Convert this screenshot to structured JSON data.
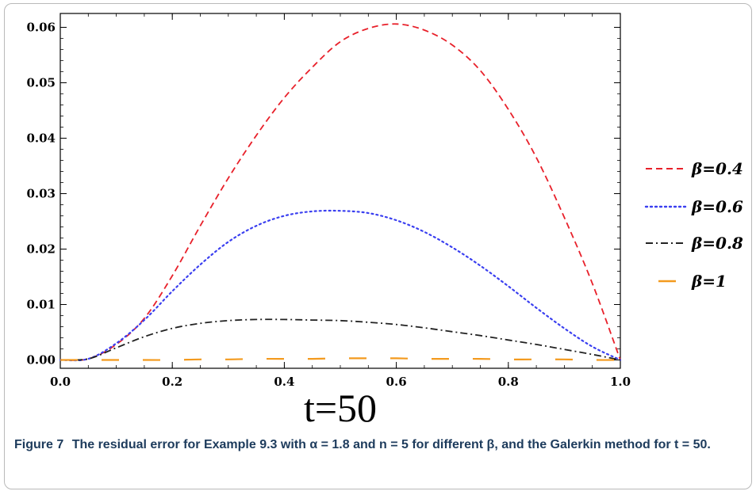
{
  "chart_data": {
    "type": "line",
    "title": "",
    "xlabel": "t=50",
    "ylabel": "",
    "xlim": [
      0.0,
      1.0
    ],
    "ylim": [
      -0.0015,
      0.0625
    ],
    "xticks": [
      0.0,
      0.2,
      0.4,
      0.6,
      0.8,
      1.0
    ],
    "xtick_labels": [
      "0.0",
      "0.2",
      "0.4",
      "0.6",
      "0.8",
      "1.0"
    ],
    "yticks": [
      0.0,
      0.01,
      0.02,
      0.03,
      0.04,
      0.05,
      0.06
    ],
    "ytick_labels": [
      "0.00",
      "0.01",
      "0.02",
      "0.03",
      "0.04",
      "0.05",
      "0.06"
    ],
    "grid": false,
    "legend_position": "right",
    "x": [
      0.0,
      0.05,
      0.1,
      0.15,
      0.2,
      0.25,
      0.3,
      0.35,
      0.4,
      0.45,
      0.5,
      0.55,
      0.6,
      0.65,
      0.7,
      0.75,
      0.8,
      0.85,
      0.9,
      0.95,
      1.0
    ],
    "series": [
      {
        "name": "β=0.4",
        "color": "#e8202a",
        "dash": "8,5",
        "values": [
          0.0,
          0.0002,
          0.0028,
          0.0075,
          0.0152,
          0.0242,
          0.0328,
          0.0405,
          0.0473,
          0.0528,
          0.0574,
          0.0598,
          0.0606,
          0.0595,
          0.0568,
          0.0522,
          0.0452,
          0.0365,
          0.0257,
          0.0138,
          0.0
        ]
      },
      {
        "name": "β=0.6",
        "color": "#3a3ff0",
        "dash": "2,4",
        "values": [
          0.0,
          0.0002,
          0.003,
          0.0072,
          0.0124,
          0.0172,
          0.0213,
          0.0242,
          0.026,
          0.0268,
          0.0269,
          0.0265,
          0.0252,
          0.0231,
          0.0203,
          0.017,
          0.0133,
          0.0094,
          0.0057,
          0.0024,
          0.0
        ]
      },
      {
        "name": "β=0.8",
        "color": "#222222",
        "dash": "9,4,2,4",
        "values": [
          0.0,
          0.0002,
          0.0022,
          0.0042,
          0.0057,
          0.0066,
          0.0071,
          0.0073,
          0.0073,
          0.0072,
          0.0071,
          0.0068,
          0.0064,
          0.0058,
          0.0051,
          0.0044,
          0.0036,
          0.0028,
          0.0019,
          0.001,
          0.0
        ]
      },
      {
        "name": "β=1",
        "color": "#f39a1e",
        "dash": "22,30",
        "values": [
          0.0,
          0.0,
          0.0,
          0.0,
          0.0,
          0.0001,
          0.0001,
          0.0002,
          0.0002,
          0.0002,
          0.0003,
          0.0003,
          0.0003,
          0.0002,
          0.0002,
          0.0002,
          0.0001,
          0.0001,
          0.0001,
          0.0,
          0.0
        ]
      }
    ]
  },
  "caption": {
    "figure_label": "Figure 7",
    "text": "The residual error for Example 9.3 with α = 1.8 and n = 5 for different β, and the Galerkin method for t = 50."
  }
}
